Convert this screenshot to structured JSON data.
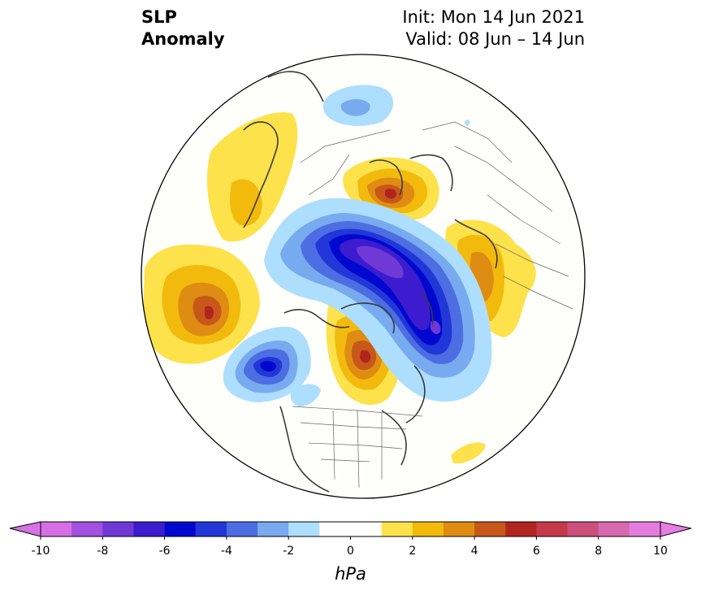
{
  "title": {
    "left_line1": "SLP",
    "left_line2": "Anomaly",
    "right_line1": "Init: Mon 14 Jun 2021",
    "right_line2": "Valid: 08 Jun – 14 Jun"
  },
  "colorbar": {
    "unit": "hPa",
    "min": -10,
    "max": 10,
    "ticks": [
      "-10",
      "-8",
      "-6",
      "-4",
      "-2",
      "0",
      "2",
      "4",
      "6",
      "8",
      "10"
    ],
    "colors": [
      "#d66fe6",
      "#a251e0",
      "#7039d6",
      "#3c1cce",
      "#0008d0",
      "#2237d8",
      "#4d6de2",
      "#78aaef",
      "#aedefd",
      "#ffffff",
      "#ffffff",
      "#fde24b",
      "#f2ba0d",
      "#df8c12",
      "#c7581a",
      "#b2241f",
      "#c53a4b",
      "#cd4f7c",
      "#d769b0",
      "#e47ce0"
    ],
    "extend_low": "#d673e4",
    "extend_high": "#e67de1"
  },
  "chart_data": {
    "type": "contour-map",
    "projection": "north polar stereographic",
    "variable": "SLP anomaly",
    "units": "hPa",
    "levels": [
      -10,
      -9,
      -8,
      -7,
      -6,
      -5,
      -4,
      -3,
      -2,
      -1,
      0,
      1,
      2,
      3,
      4,
      5,
      6,
      7,
      8,
      9,
      10
    ],
    "features": [
      {
        "kind": "low",
        "region": "central Arctic to Kara Sea",
        "min_approx": -9
      },
      {
        "kind": "low",
        "region": "Gulf of Alaska",
        "min_approx": -6
      },
      {
        "kind": "low",
        "region": "western Europe / Norwegian Sea",
        "min_approx": -3
      },
      {
        "kind": "high",
        "region": "northwest Pacific / Kamchatka",
        "max_approx": 7
      },
      {
        "kind": "high",
        "region": "Canada / Hudson Bay",
        "max_approx": 6
      },
      {
        "kind": "high",
        "region": "northern Scandinavia / Barents",
        "max_approx": 6
      },
      {
        "kind": "high",
        "region": "East Asia / Mongolia",
        "max_approx": 3
      },
      {
        "kind": "high",
        "region": "Eastern Europe",
        "max_approx": 4
      },
      {
        "kind": "high",
        "region": "western Atlantic",
        "max_approx": 2
      }
    ]
  }
}
